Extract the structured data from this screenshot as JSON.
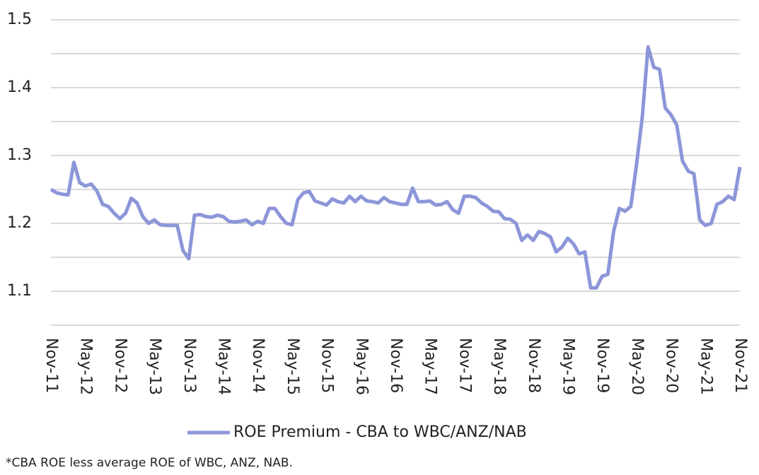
{
  "chart_data": {
    "type": "line",
    "footnote": "*CBA ROE less average ROE of WBC, ANZ, NAB.",
    "categories": [
      "Nov-11",
      null,
      null,
      null,
      null,
      null,
      "May-12",
      null,
      null,
      null,
      null,
      null,
      "Nov-12",
      null,
      null,
      null,
      null,
      null,
      "May-13",
      null,
      null,
      null,
      null,
      null,
      "Nov-13",
      null,
      null,
      null,
      null,
      null,
      "May-14",
      null,
      null,
      null,
      null,
      null,
      "Nov-14",
      null,
      null,
      null,
      null,
      null,
      "May-15",
      null,
      null,
      null,
      null,
      null,
      "Nov-15",
      null,
      null,
      null,
      null,
      null,
      "May-16",
      null,
      null,
      null,
      null,
      null,
      "Nov-16",
      null,
      null,
      null,
      null,
      null,
      "May-17",
      null,
      null,
      null,
      null,
      null,
      "Nov-17",
      null,
      null,
      null,
      null,
      null,
      "May-18",
      null,
      null,
      null,
      null,
      null,
      "Nov-18",
      null,
      null,
      null,
      null,
      null,
      "May-19",
      null,
      null,
      null,
      null,
      null,
      "Nov-19",
      null,
      null,
      null,
      null,
      null,
      "May-20",
      null,
      null,
      null,
      null,
      null,
      "Nov-20",
      null,
      null,
      null,
      null,
      null,
      "May-21",
      null,
      null,
      null,
      null,
      null,
      "Nov-21"
    ],
    "series": [
      {
        "name": "ROE Premium - CBA to WBC/ANZ/NAB",
        "color": "#8c96d8",
        "values": [
          1.25,
          1.245,
          1.243,
          1.242,
          1.29,
          1.26,
          1.255,
          1.258,
          1.248,
          1.228,
          1.225,
          1.215,
          1.207,
          1.215,
          1.237,
          1.23,
          1.21,
          1.2,
          1.205,
          1.198,
          1.197,
          1.197,
          1.197,
          1.16,
          1.148,
          1.212,
          1.213,
          1.21,
          1.209,
          1.212,
          1.21,
          1.203,
          1.202,
          1.203,
          1.205,
          1.198,
          1.203,
          1.2,
          1.222,
          1.222,
          1.21,
          1.2,
          1.198,
          1.235,
          1.245,
          1.247,
          1.233,
          1.23,
          1.227,
          1.236,
          1.232,
          1.23,
          1.24,
          1.232,
          1.24,
          1.233,
          1.232,
          1.23,
          1.238,
          1.232,
          1.23,
          1.228,
          1.228,
          1.252,
          1.232,
          1.232,
          1.233,
          1.227,
          1.228,
          1.232,
          1.22,
          1.215,
          1.24,
          1.24,
          1.238,
          1.23,
          1.225,
          1.218,
          1.217,
          1.207,
          1.206,
          1.2,
          1.175,
          1.183,
          1.175,
          1.188,
          1.185,
          1.18,
          1.158,
          1.165,
          1.178,
          1.17,
          1.155,
          1.158,
          1.105,
          1.105,
          1.122,
          1.125,
          1.188,
          1.222,
          1.218,
          1.225,
          1.287,
          1.357,
          1.46,
          1.43,
          1.427,
          1.37,
          1.36,
          1.345,
          1.292,
          1.277,
          1.273,
          1.205,
          1.197,
          1.2,
          1.228,
          1.232,
          1.24,
          1.235,
          1.283
        ]
      }
    ],
    "ylim": [
      1.05,
      1.5
    ],
    "yticks": [
      1.1,
      1.2,
      1.3,
      1.4,
      1.5
    ],
    "minor_grid": [
      1.15,
      1.25,
      1.35,
      1.45
    ],
    "grid": true
  }
}
